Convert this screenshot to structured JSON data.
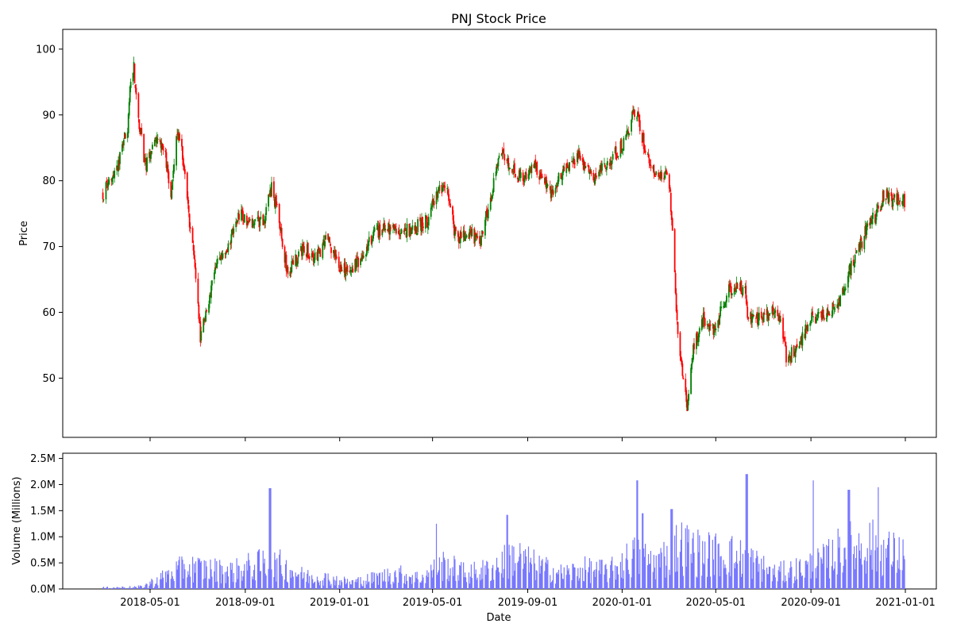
{
  "chart_data": {
    "type": "candlestick",
    "title": "PNJ Stock Price",
    "xlabel": "Date",
    "ylabel": "Price",
    "volume_ylabel": "Volume (Millions)",
    "date_range": [
      "2018-03-01",
      "2020-12-31"
    ],
    "x_ticks": [
      "2018-05-01",
      "2018-09-01",
      "2019-01-01",
      "2019-05-01",
      "2019-09-01",
      "2020-01-01",
      "2020-05-01",
      "2020-09-01",
      "2021-01-01"
    ],
    "price_ylim": [
      41,
      103
    ],
    "price_ticks": [
      50,
      60,
      70,
      80,
      90,
      100
    ],
    "volume_ylim": [
      0,
      2.6
    ],
    "volume_ticks": [
      0,
      0.5,
      1.0,
      1.5,
      2.0,
      2.5
    ],
    "volume_tick_labels": [
      "0.0M",
      "0.5M",
      "1.0M",
      "1.5M",
      "2.0M",
      "2.5M"
    ],
    "colors": {
      "up": "#008000",
      "down": "#ff0000",
      "volume": "#7777ff"
    },
    "grid": false,
    "price_anchors": [
      [
        "2018-03-01",
        78
      ],
      [
        "2018-03-10",
        80
      ],
      [
        "2018-03-20",
        82
      ],
      [
        "2018-03-28",
        86
      ],
      [
        "2018-04-02",
        88
      ],
      [
        "2018-04-07",
        98
      ],
      [
        "2018-04-10",
        97
      ],
      [
        "2018-04-15",
        90
      ],
      [
        "2018-04-25",
        82
      ],
      [
        "2018-05-10",
        86
      ],
      [
        "2018-05-20",
        84
      ],
      [
        "2018-05-28",
        78
      ],
      [
        "2018-06-05",
        87
      ],
      [
        "2018-06-12",
        84
      ],
      [
        "2018-06-20",
        75
      ],
      [
        "2018-07-01",
        64
      ],
      [
        "2018-07-05",
        56
      ],
      [
        "2018-07-12",
        60
      ],
      [
        "2018-07-25",
        67
      ],
      [
        "2018-08-10",
        70
      ],
      [
        "2018-08-25",
        75
      ],
      [
        "2018-09-05",
        73
      ],
      [
        "2018-09-25",
        74
      ],
      [
        "2018-10-05",
        79
      ],
      [
        "2018-10-15",
        74
      ],
      [
        "2018-10-25",
        66
      ],
      [
        "2018-11-15",
        70
      ],
      [
        "2018-12-01",
        68
      ],
      [
        "2018-12-15",
        71
      ],
      [
        "2019-01-01",
        67
      ],
      [
        "2019-01-15",
        66
      ],
      [
        "2019-02-01",
        69
      ],
      [
        "2019-02-15",
        72
      ],
      [
        "2019-03-01",
        73
      ],
      [
        "2019-03-20",
        72
      ],
      [
        "2019-04-10",
        73
      ],
      [
        "2019-04-25",
        74
      ],
      [
        "2019-05-08",
        79
      ],
      [
        "2019-05-20",
        78
      ],
      [
        "2019-06-01",
        71
      ],
      [
        "2019-06-15",
        72
      ],
      [
        "2019-07-01",
        71
      ],
      [
        "2019-07-15",
        77
      ],
      [
        "2019-07-28",
        85
      ],
      [
        "2019-08-10",
        82
      ],
      [
        "2019-08-25",
        80
      ],
      [
        "2019-09-10",
        82
      ],
      [
        "2019-10-01",
        78
      ],
      [
        "2019-10-20",
        82
      ],
      [
        "2019-11-05",
        84
      ],
      [
        "2019-11-25",
        80
      ],
      [
        "2019-12-15",
        83
      ],
      [
        "2020-01-05",
        86
      ],
      [
        "2020-01-18",
        91
      ],
      [
        "2020-02-01",
        84
      ],
      [
        "2020-02-15",
        81
      ],
      [
        "2020-03-01",
        81
      ],
      [
        "2020-03-06",
        72
      ],
      [
        "2020-03-12",
        58
      ],
      [
        "2020-03-18",
        52
      ],
      [
        "2020-03-25",
        45
      ],
      [
        "2020-04-01",
        54
      ],
      [
        "2020-04-15",
        59
      ],
      [
        "2020-04-30",
        57
      ],
      [
        "2020-05-15",
        63
      ],
      [
        "2020-06-01",
        64
      ],
      [
        "2020-06-08",
        63
      ],
      [
        "2020-06-12",
        59
      ],
      [
        "2020-06-25",
        59
      ],
      [
        "2020-07-15",
        60
      ],
      [
        "2020-07-25",
        59
      ],
      [
        "2020-08-01",
        52
      ],
      [
        "2020-08-08",
        54
      ],
      [
        "2020-08-20",
        56
      ],
      [
        "2020-09-01",
        59
      ],
      [
        "2020-09-20",
        60
      ],
      [
        "2020-10-05",
        61
      ],
      [
        "2020-10-20",
        66
      ],
      [
        "2020-11-01",
        69
      ],
      [
        "2020-11-12",
        73
      ],
      [
        "2020-11-25",
        75
      ],
      [
        "2020-12-05",
        78
      ],
      [
        "2020-12-15",
        77
      ],
      [
        "2020-12-24",
        77
      ]
    ],
    "volume_anchors": [
      [
        "2018-03-01",
        0.03
      ],
      [
        "2018-04-01",
        0.04
      ],
      [
        "2018-04-20",
        0.05
      ],
      [
        "2018-05-15",
        0.25
      ],
      [
        "2018-06-15",
        0.5
      ],
      [
        "2018-07-15",
        0.45
      ],
      [
        "2018-08-15",
        0.4
      ],
      [
        "2018-09-15",
        0.55
      ],
      [
        "2018-10-15",
        0.55
      ],
      [
        "2018-11-15",
        0.3
      ],
      [
        "2018-12-15",
        0.25
      ],
      [
        "2019-01-15",
        0.15
      ],
      [
        "2019-02-15",
        0.25
      ],
      [
        "2019-03-15",
        0.35
      ],
      [
        "2019-04-15",
        0.25
      ],
      [
        "2019-05-15",
        0.55
      ],
      [
        "2019-06-15",
        0.35
      ],
      [
        "2019-07-15",
        0.45
      ],
      [
        "2019-08-15",
        0.75
      ],
      [
        "2019-09-15",
        0.5
      ],
      [
        "2019-10-15",
        0.35
      ],
      [
        "2019-11-15",
        0.45
      ],
      [
        "2019-12-15",
        0.4
      ],
      [
        "2020-01-15",
        0.75
      ],
      [
        "2020-02-15",
        0.6
      ],
      [
        "2020-03-15",
        1.0
      ],
      [
        "2020-04-15",
        0.8
      ],
      [
        "2020-05-15",
        0.8
      ],
      [
        "2020-06-15",
        0.65
      ],
      [
        "2020-07-15",
        0.35
      ],
      [
        "2020-08-15",
        0.45
      ],
      [
        "2020-09-15",
        0.6
      ],
      [
        "2020-10-15",
        0.95
      ],
      [
        "2020-11-15",
        1.0
      ],
      [
        "2020-12-15",
        0.8
      ]
    ],
    "volume_spikes": [
      [
        "2018-10-03",
        1.93
      ],
      [
        "2019-05-05",
        1.25
      ],
      [
        "2019-08-05",
        1.42
      ],
      [
        "2020-01-20",
        2.08
      ],
      [
        "2020-01-27",
        1.45
      ],
      [
        "2020-03-05",
        1.53
      ],
      [
        "2020-06-10",
        2.2
      ],
      [
        "2020-09-05",
        2.08
      ],
      [
        "2020-10-20",
        1.9
      ],
      [
        "2020-11-28",
        1.95
      ]
    ]
  }
}
